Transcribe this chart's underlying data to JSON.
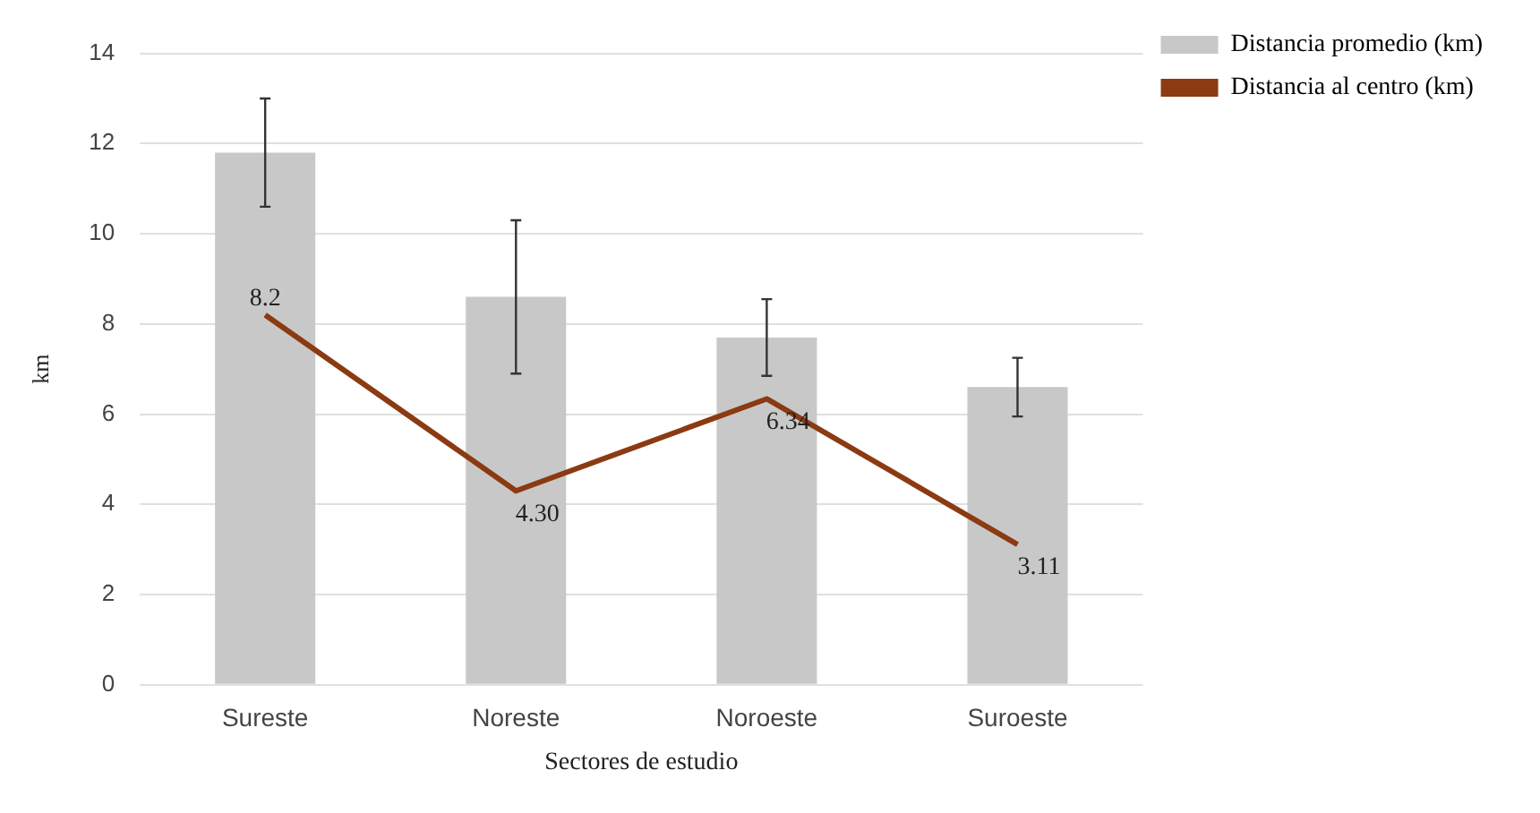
{
  "chart_data": {
    "type": "bar",
    "xlabel": "Sectores de estudio",
    "ylabel": "km",
    "categories": [
      "Sureste",
      "Noreste",
      "Noroeste",
      "Suroeste"
    ],
    "series": [
      {
        "name": "Distancia promedio (km)",
        "color": "#c8c8c8",
        "values": [
          11.8,
          8.6,
          7.7,
          6.6
        ],
        "errors": [
          1.2,
          1.7,
          0.85,
          0.65
        ]
      },
      {
        "name": "Distancia al centro (km)",
        "type": "line",
        "color": "#8b3a12",
        "values": [
          8.2,
          4.3,
          6.34,
          3.11
        ],
        "value_labels": [
          "8.2",
          "4.30",
          "6.34",
          "3.11"
        ]
      }
    ],
    "ylim": [
      0,
      14
    ],
    "yticks": [
      0,
      2,
      4,
      6,
      8,
      10,
      12,
      14
    ],
    "grid": "y",
    "legend": "top right",
    "marker": "none"
  }
}
